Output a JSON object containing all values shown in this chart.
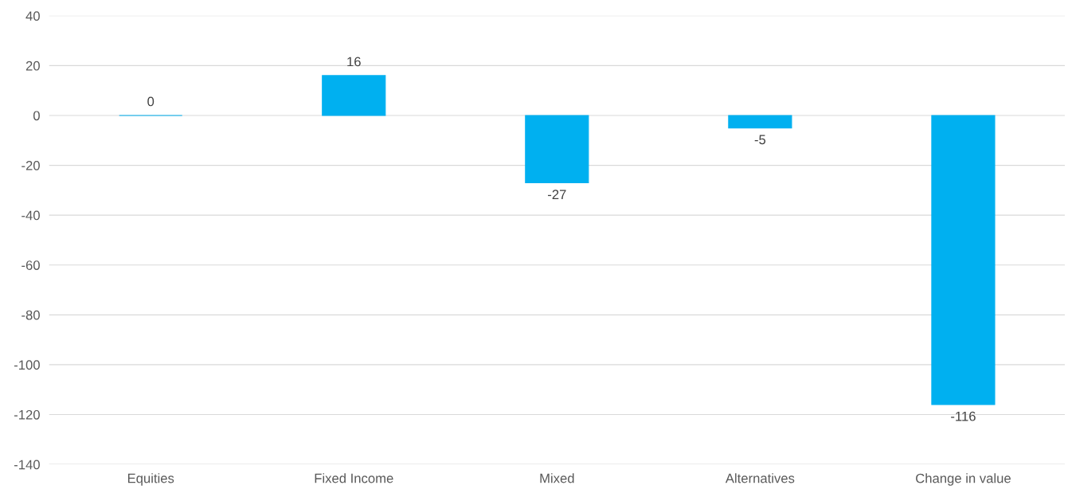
{
  "chart_data": {
    "type": "bar",
    "categories": [
      "Equities",
      "Fixed Income",
      "Mixed",
      "Alternatives",
      "Change in value"
    ],
    "values": [
      0,
      16,
      -27,
      -5,
      -116
    ],
    "color": "#00b0f0",
    "ylim": [
      -140,
      40
    ],
    "yticks": [
      -140,
      -120,
      -100,
      -80,
      -60,
      -40,
      -20,
      0,
      20,
      40
    ],
    "grid": "y",
    "data_labels": true
  }
}
